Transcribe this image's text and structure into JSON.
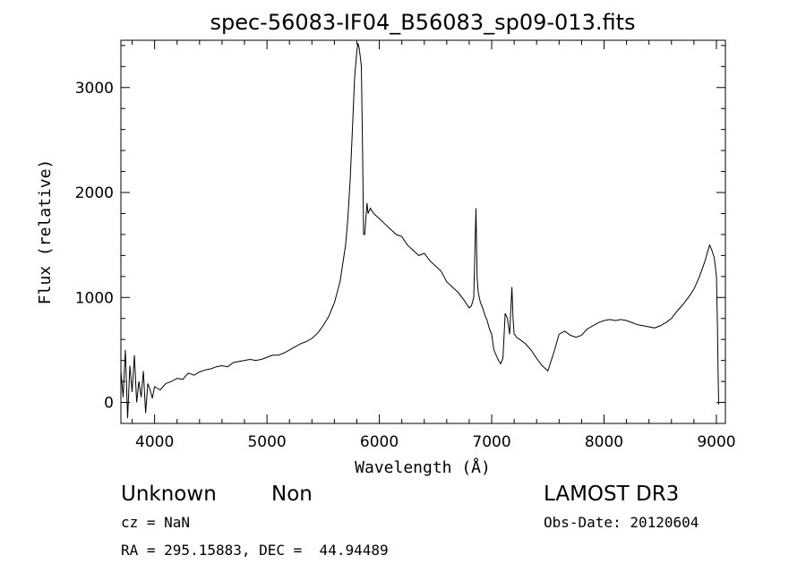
{
  "chart_data": {
    "type": "line",
    "title": "spec-56083-IF04_B56083_sp09-013.fits",
    "xlabel": "Wavelength (Å)",
    "ylabel": "Flux (relative)",
    "xlim": [
      3700,
      9080
    ],
    "ylim": [
      -200,
      3450
    ],
    "x_ticks": [
      4000,
      5000,
      6000,
      7000,
      8000,
      9000
    ],
    "y_ticks": [
      0,
      1000,
      2000,
      3000
    ],
    "x_tick_labels": [
      "4000",
      "5000",
      "6000",
      "7000",
      "8000",
      "9000"
    ],
    "y_tick_labels": [
      "0",
      "1000",
      "2000",
      "3000"
    ],
    "grid": false,
    "legend": "none",
    "line_color": "#000000",
    "series": [
      {
        "x": [
          3700,
          3720,
          3740,
          3760,
          3780,
          3800,
          3820,
          3840,
          3860,
          3880,
          3900,
          3920,
          3940,
          3960,
          3980,
          4000,
          4050,
          4100,
          4150,
          4200,
          4250,
          4300,
          4350,
          4400,
          4450,
          4500,
          4550,
          4600,
          4650,
          4700,
          4750,
          4800,
          4850,
          4900,
          4950,
          5000,
          5050,
          5100,
          5150,
          5200,
          5250,
          5300,
          5350,
          5400,
          5450,
          5500,
          5550,
          5600,
          5650,
          5700,
          5720,
          5740,
          5760,
          5780,
          5800,
          5810,
          5820,
          5830,
          5840,
          5850,
          5860,
          5870,
          5880,
          5890,
          5900,
          5920,
          5950,
          6000,
          6050,
          6100,
          6150,
          6200,
          6250,
          6300,
          6350,
          6400,
          6450,
          6500,
          6550,
          6600,
          6650,
          6700,
          6750,
          6800,
          6820,
          6840,
          6860,
          6870,
          6880,
          6890,
          6900,
          6920,
          6940,
          6960,
          6980,
          7000,
          7020,
          7040,
          7060,
          7080,
          7100,
          7120,
          7140,
          7160,
          7180,
          7190,
          7200,
          7210,
          7220,
          7250,
          7300,
          7350,
          7400,
          7450,
          7500,
          7530,
          7560,
          7600,
          7650,
          7700,
          7750,
          7800,
          7850,
          7900,
          7950,
          8000,
          8050,
          8100,
          8150,
          8200,
          8250,
          8300,
          8350,
          8400,
          8450,
          8500,
          8550,
          8600,
          8650,
          8700,
          8750,
          8800,
          8850,
          8900,
          8920,
          8940,
          8960,
          8980,
          9000,
          9010,
          9015,
          9020
        ],
        "y": [
          300,
          50,
          500,
          -150,
          350,
          100,
          450,
          0,
          200,
          50,
          300,
          -100,
          180,
          120,
          40,
          150,
          120,
          180,
          200,
          230,
          220,
          280,
          260,
          290,
          310,
          320,
          340,
          350,
          340,
          380,
          390,
          400,
          410,
          400,
          410,
          430,
          450,
          450,
          470,
          500,
          530,
          560,
          580,
          610,
          660,
          730,
          820,
          950,
          1150,
          1500,
          1750,
          2100,
          2600,
          3100,
          3350,
          3420,
          3380,
          3300,
          3200,
          2500,
          1600,
          1600,
          1750,
          1900,
          1800,
          1850,
          1800,
          1750,
          1700,
          1650,
          1600,
          1580,
          1500,
          1450,
          1400,
          1420,
          1350,
          1300,
          1250,
          1150,
          1100,
          1050,
          980,
          900,
          920,
          1000,
          1850,
          1200,
          1050,
          1000,
          950,
          900,
          830,
          780,
          700,
          650,
          500,
          450,
          400,
          370,
          420,
          850,
          800,
          650,
          1100,
          800,
          650,
          640,
          620,
          600,
          560,
          500,
          420,
          350,
          300,
          400,
          500,
          650,
          680,
          640,
          620,
          640,
          700,
          730,
          760,
          780,
          790,
          780,
          790,
          780,
          760,
          740,
          730,
          720,
          710,
          730,
          760,
          800,
          870,
          930,
          1000,
          1080,
          1200,
          1350,
          1430,
          1500,
          1450,
          1380,
          1200,
          700,
          300,
          -20
        ]
      }
    ]
  },
  "footer": {
    "object_class": "Unknown",
    "subclass": "Non",
    "survey": "LAMOST DR3",
    "cz": "cz = NaN",
    "obs_date": "Obs-Date: 20120604",
    "coords": "RA = 295.15883, DEC =  44.94489"
  }
}
